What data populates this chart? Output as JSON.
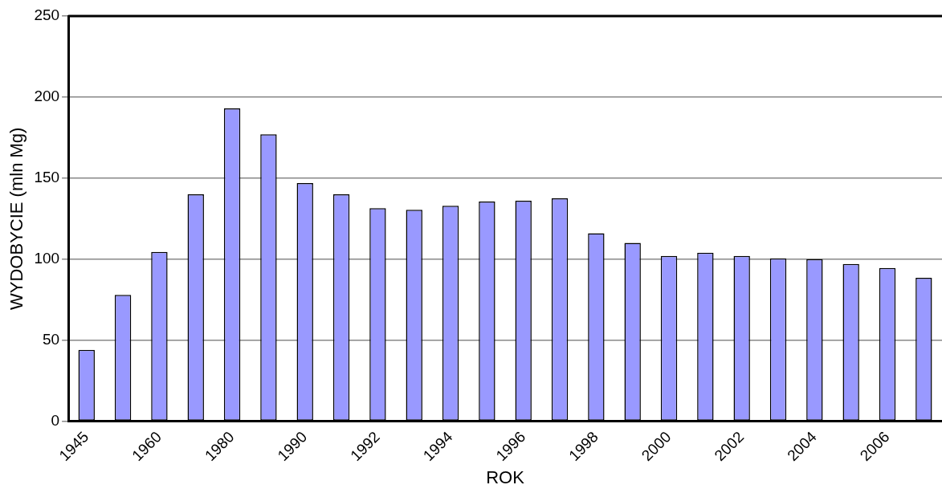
{
  "chart_data": {
    "type": "bar",
    "xlabel": "ROK",
    "ylabel": "WYDOBYCIE (mln Mg)",
    "categories": [
      "1945",
      null,
      "1960",
      null,
      "1980",
      null,
      "1990",
      null,
      "1992",
      null,
      "1994",
      null,
      "1996",
      null,
      "1998",
      null,
      "2000",
      null,
      "2002",
      null,
      "2004",
      null,
      "2006",
      null
    ],
    "values": [
      44,
      78,
      104.5,
      140,
      193,
      177,
      147,
      140,
      131.5,
      130.5,
      133,
      135.5,
      136,
      137.5,
      116,
      110,
      102,
      104,
      102,
      100.5,
      100,
      97,
      94.5,
      88.5
    ],
    "color": "#9999ff",
    "ylim": [
      0,
      250
    ],
    "yticks": [
      0,
      50,
      100,
      150,
      200,
      250
    ],
    "grid": "y",
    "legend": false
  }
}
